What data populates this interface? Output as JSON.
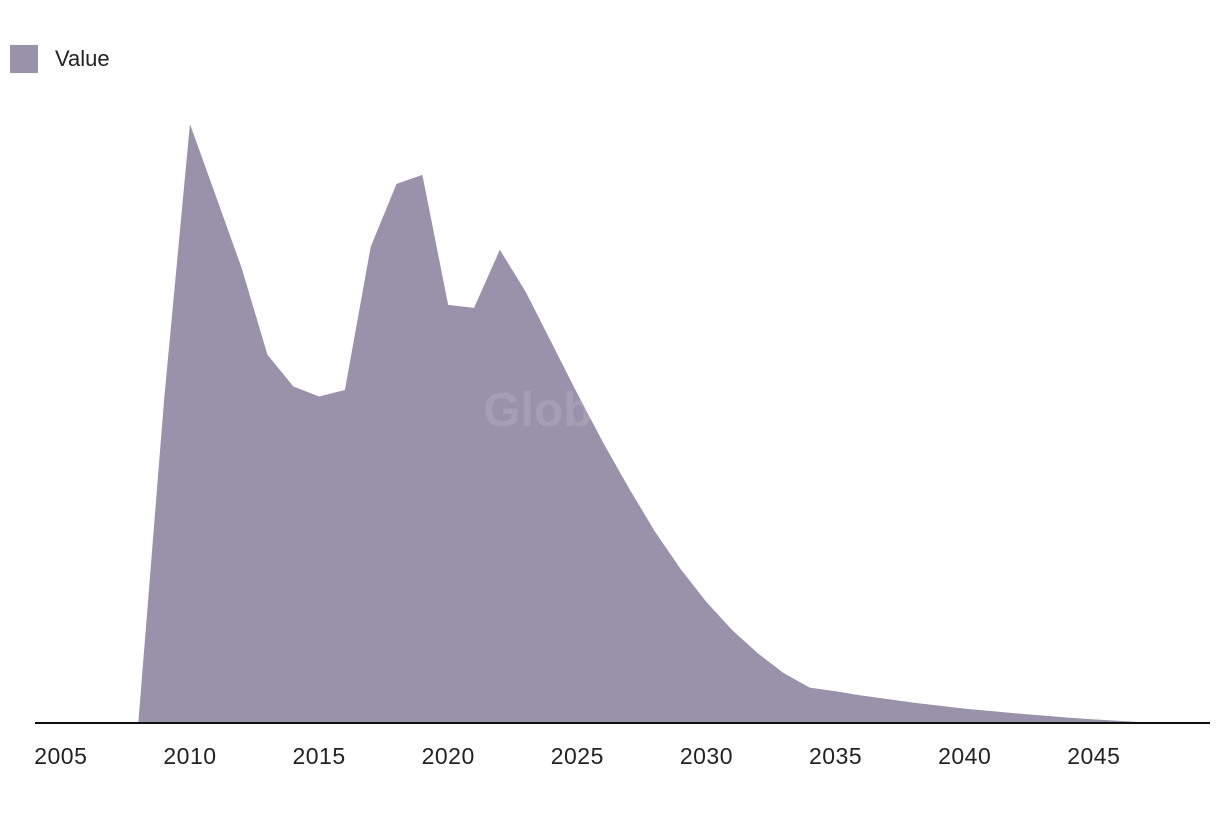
{
  "legend": {
    "label": "Value",
    "color": "#9a91aa"
  },
  "watermark": "GlobalData",
  "chart_data": {
    "type": "area",
    "title": "",
    "xlabel": "",
    "ylabel": "",
    "legend_position": "top-left",
    "grid": false,
    "xlim": [
      2004,
      2049.5
    ],
    "ylim": [
      0,
      100
    ],
    "x_ticks": [
      2005,
      2010,
      2015,
      2020,
      2025,
      2030,
      2035,
      2040,
      2045
    ],
    "x_tick_labels": [
      "2005",
      "2010",
      "2015",
      "2020",
      "2025",
      "2030",
      "2035",
      "2040",
      "2045"
    ],
    "x": [
      2008,
      2009,
      2010,
      2011,
      2012,
      2013,
      2014,
      2015,
      2016,
      2017,
      2018,
      2019,
      2020,
      2021,
      2022,
      2023,
      2024,
      2025,
      2026,
      2027,
      2028,
      2029,
      2030,
      2031,
      2032,
      2033,
      2034,
      2035,
      2036,
      2037,
      2038,
      2039,
      2040,
      2041,
      2042,
      2043,
      2044,
      2045,
      2046,
      2047,
      2048
    ],
    "series": [
      {
        "name": "Value",
        "color": "#9a91aa",
        "values": [
          0,
          54,
          100,
          88,
          76,
          61.5,
          56.2,
          54.5,
          55.6,
          79.5,
          90,
          91.5,
          69.8,
          69.3,
          79,
          72,
          63.5,
          55,
          46.8,
          39.2,
          32,
          25.7,
          20.2,
          15.5,
          11.6,
          8.3,
          5.9,
          5.3,
          4.6,
          4,
          3.4,
          2.9,
          2.4,
          2,
          1.6,
          1.25,
          0.9,
          0.6,
          0.35,
          0.1,
          -0.15
        ]
      }
    ]
  }
}
